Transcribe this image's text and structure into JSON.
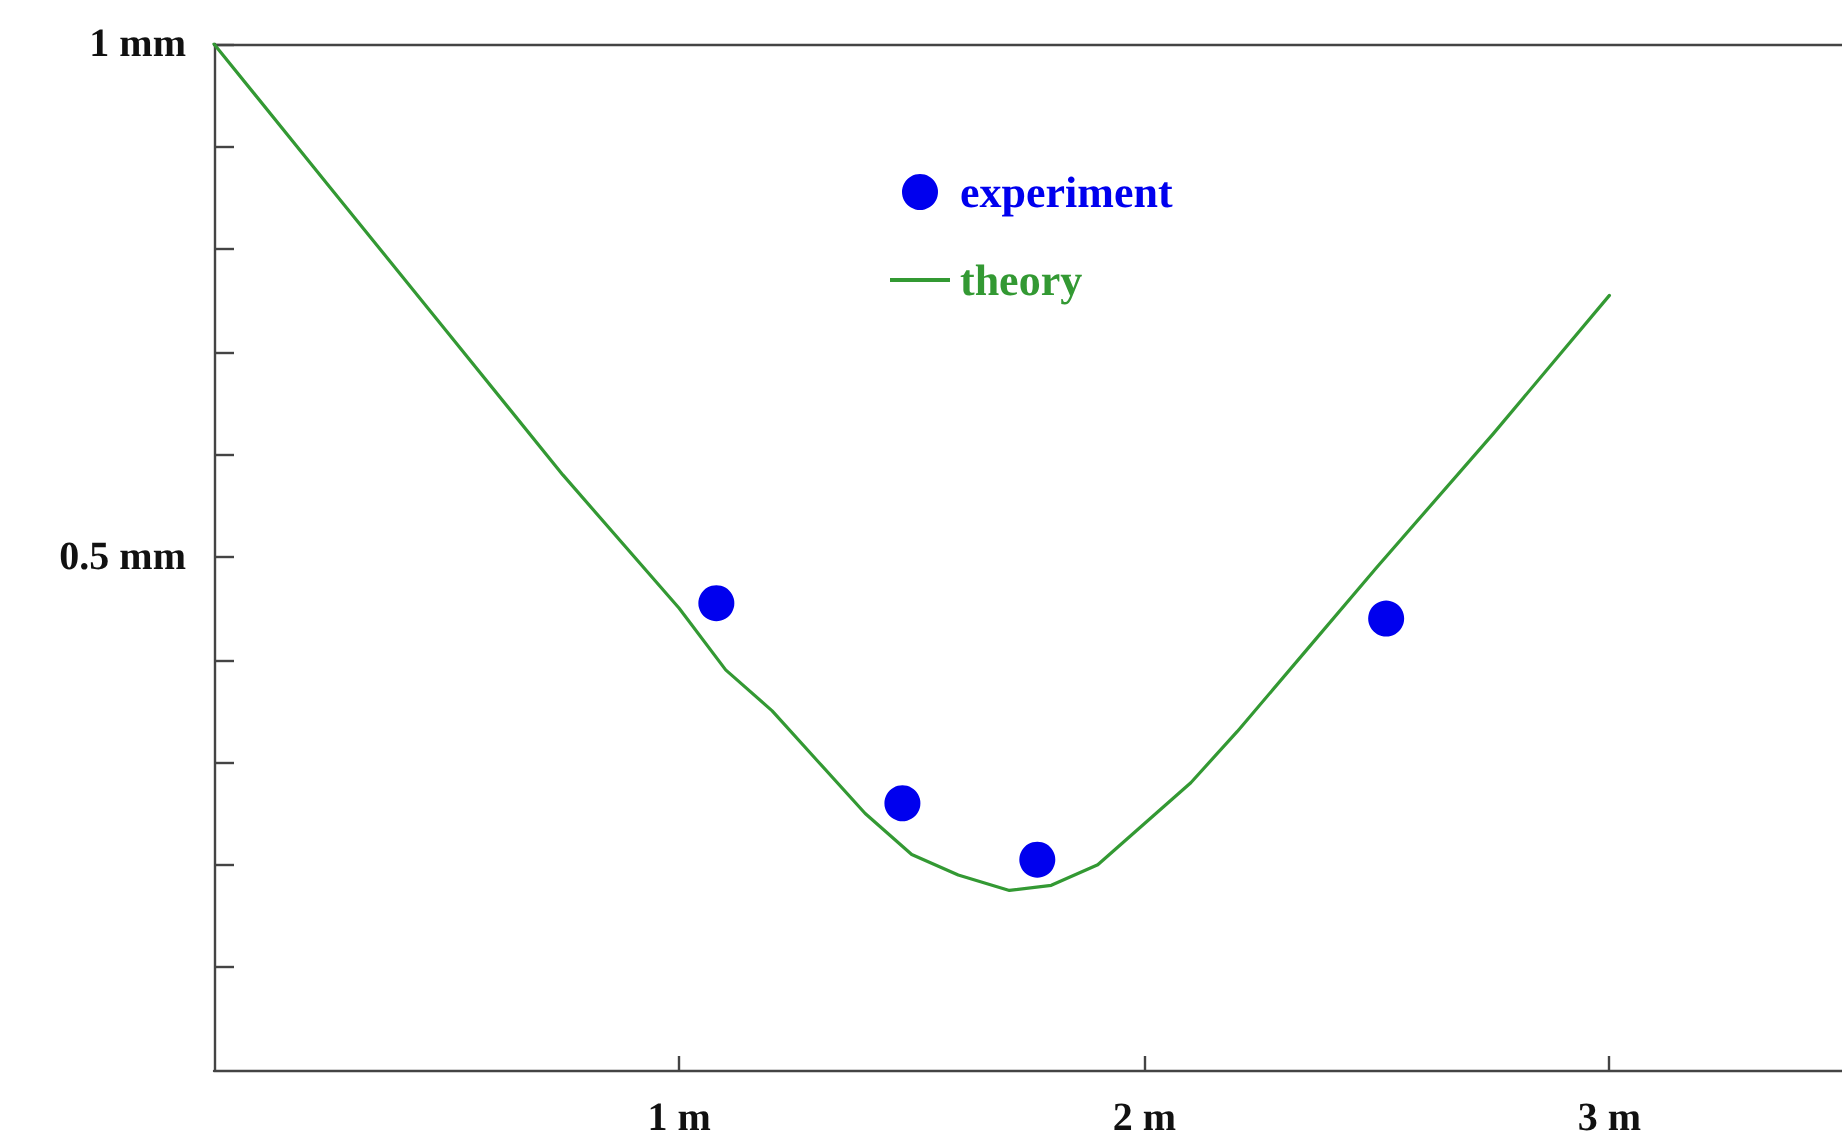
{
  "chart_data": {
    "type": "scatter",
    "series": [
      {
        "name": "experiment",
        "type": "scatter",
        "color": "#0000ee",
        "marker": "circle",
        "x": [
          1.08,
          1.48,
          1.77,
          2.52
        ],
        "values": [
          0.455,
          0.26,
          0.205,
          0.44
        ]
      },
      {
        "name": "theory",
        "type": "line",
        "color": "#339933",
        "marker": "none",
        "line_style": "solid",
        "x": [
          0,
          0.25,
          0.5,
          0.75,
          1,
          1.1,
          1.2,
          1.3,
          1.4,
          1.5,
          1.6,
          1.71,
          1.8,
          1.9,
          2,
          2.1,
          2.2,
          2.35,
          2.5,
          2.75,
          3
        ],
        "values": [
          1,
          0.86,
          0.72,
          0.58,
          0.45,
          0.39,
          0.35,
          0.3,
          0.25,
          0.21,
          0.19,
          0.175,
          0.18,
          0.2,
          0.24,
          0.28,
          0.33,
          0.41,
          0.49,
          0.62,
          0.755
        ]
      }
    ],
    "xlim": [
      0,
      3.5
    ],
    "xticks": [
      {
        "value": 1,
        "label": "1 m"
      },
      {
        "value": 2,
        "label": "2 m"
      },
      {
        "value": 3,
        "label": "3 m"
      }
    ],
    "ylim": [
      0,
      1
    ],
    "yticks": [
      {
        "value": 0.1,
        "label": null
      },
      {
        "value": 0.2,
        "label": null
      },
      {
        "value": 0.3,
        "label": null
      },
      {
        "value": 0.4,
        "label": null
      },
      {
        "value": 0.5,
        "label": "0.5 mm"
      },
      {
        "value": 0.6,
        "label": null
      },
      {
        "value": 0.7,
        "label": null
      },
      {
        "value": 0.8,
        "label": null
      },
      {
        "value": 0.9,
        "label": null
      },
      {
        "value": 1,
        "label": "1 mm"
      }
    ],
    "legend": "top"
  }
}
